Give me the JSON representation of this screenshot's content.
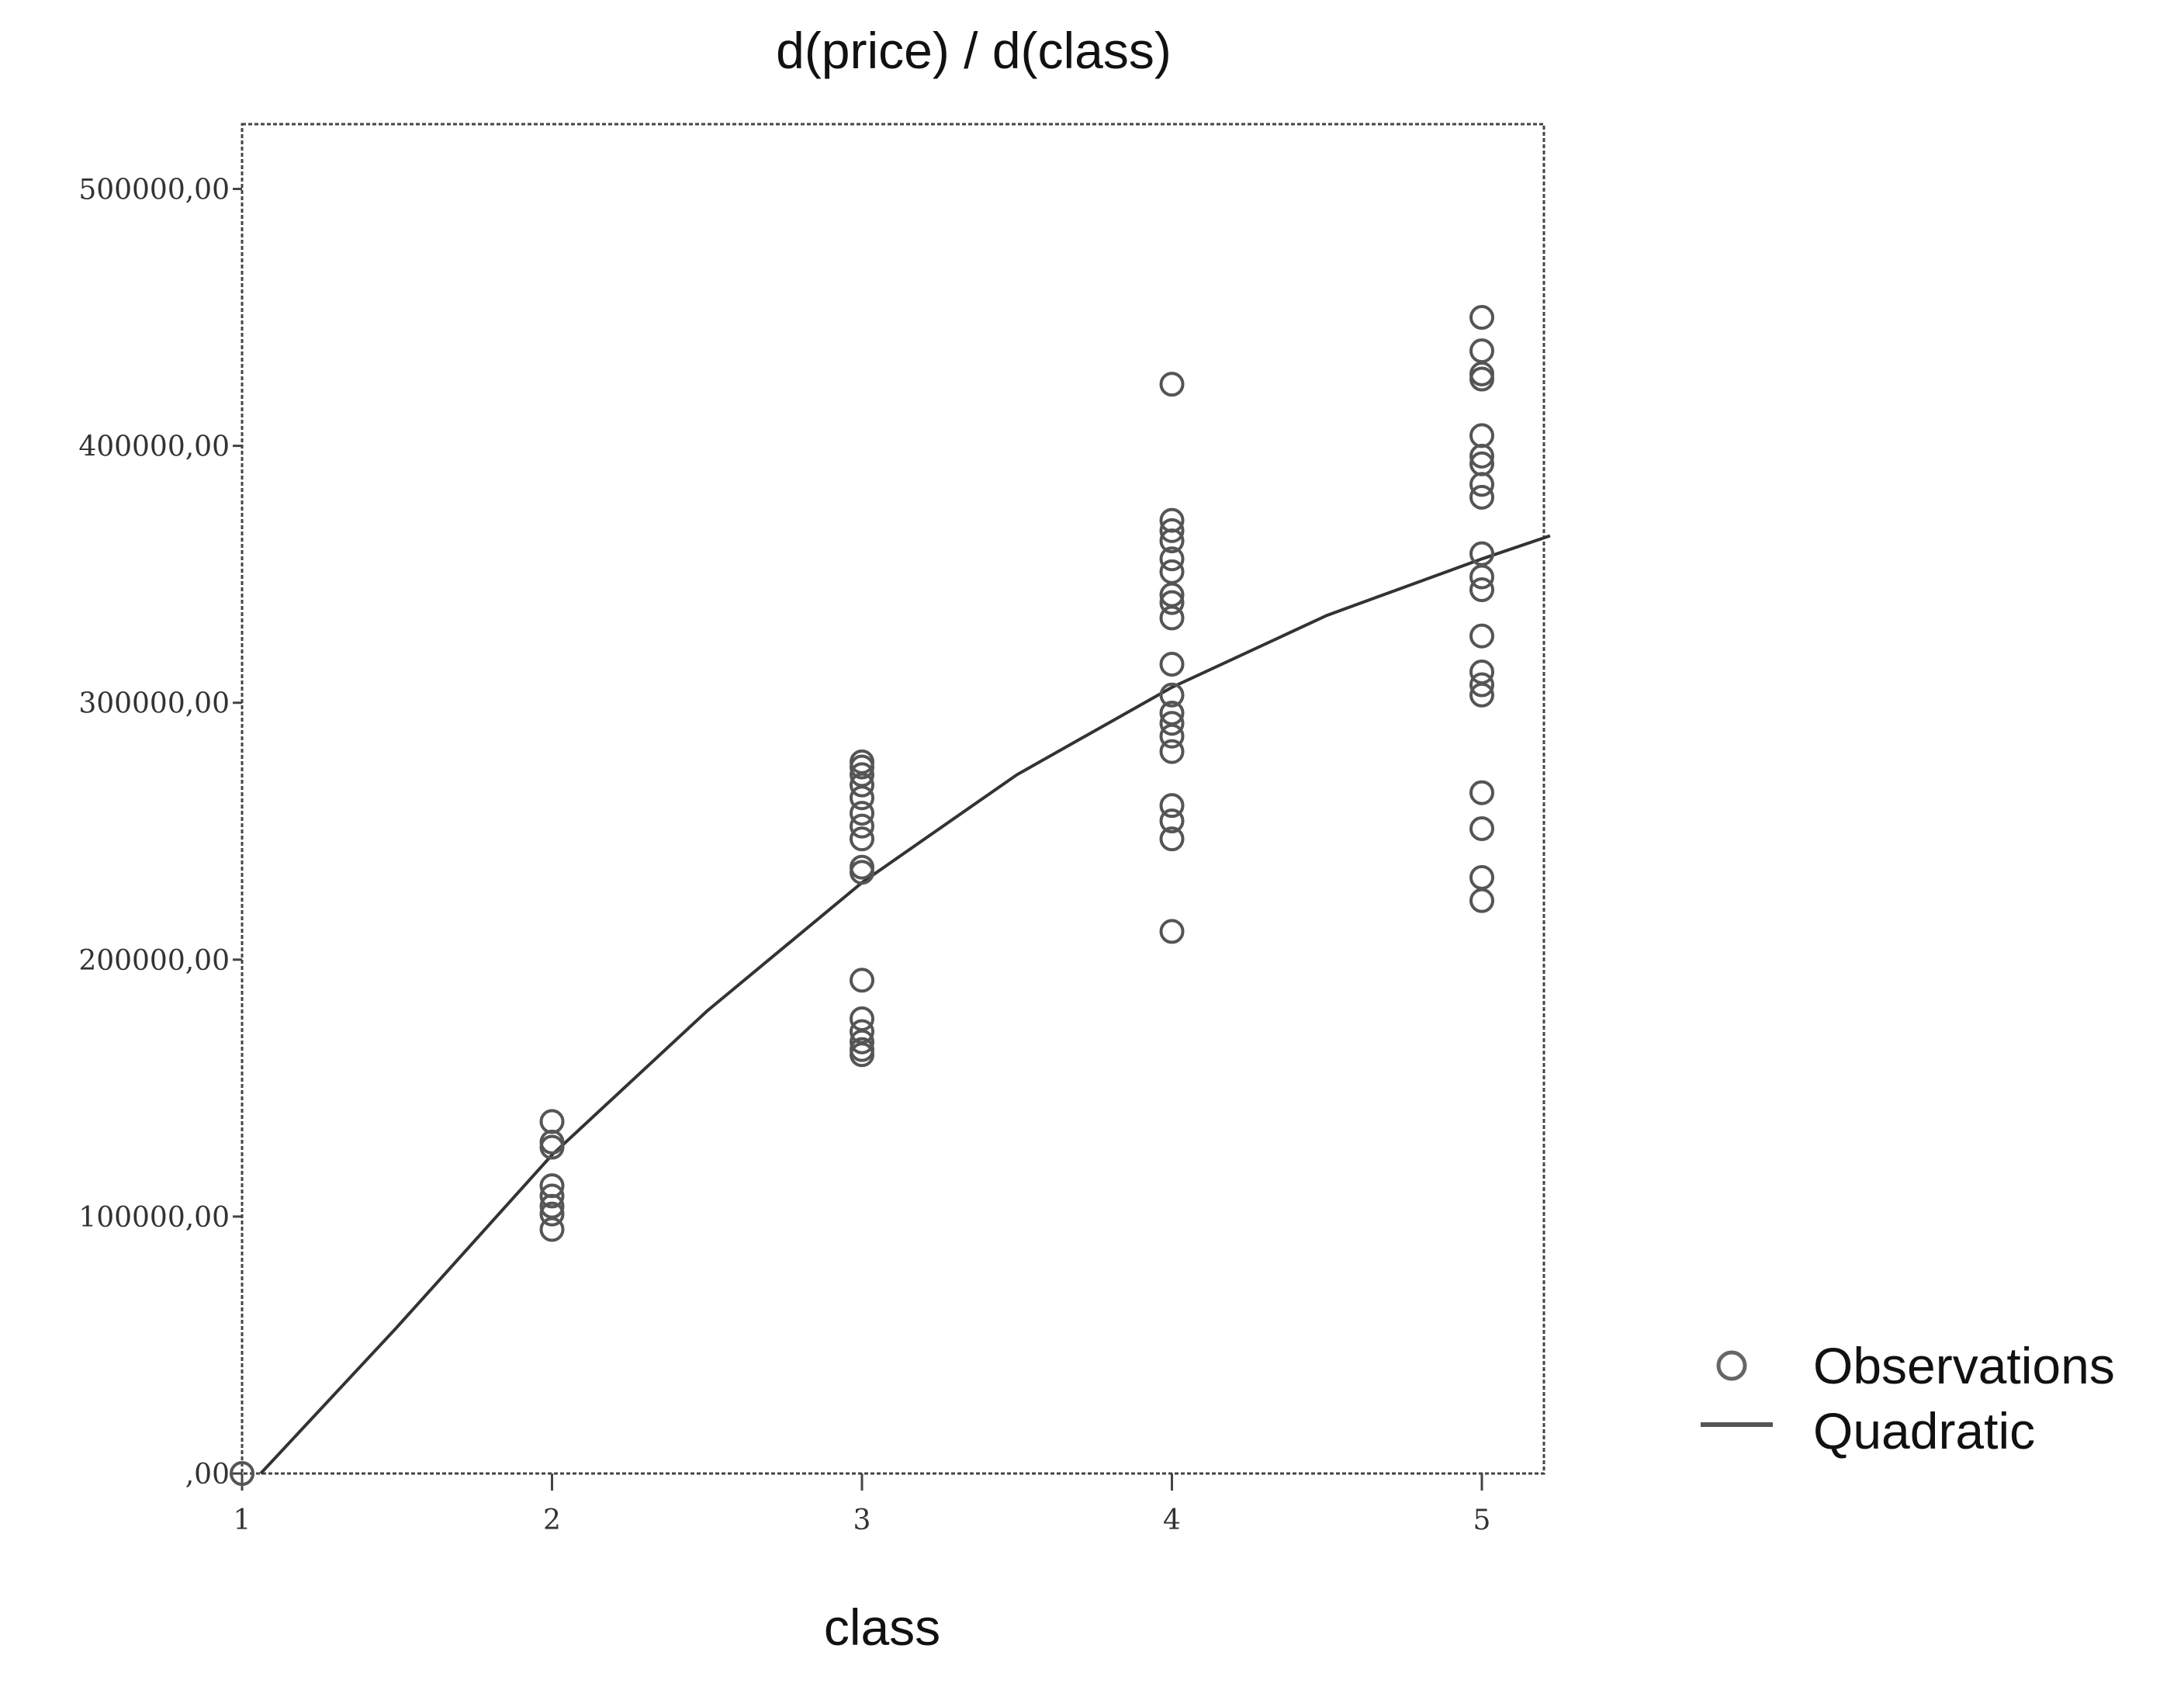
{
  "chart_data": {
    "type": "scatter",
    "title": "d(price) / d(class)",
    "xlabel": "class",
    "ylabel": "",
    "xlim": [
      1,
      5.2
    ],
    "ylim": [
      0,
      525000
    ],
    "x_ticks": [
      1,
      2,
      3,
      4,
      5
    ],
    "x_tick_labels": [
      "1",
      "2",
      "3",
      "4",
      "5"
    ],
    "y_ticks": [
      0,
      100000,
      200000,
      300000,
      400000,
      500000
    ],
    "y_tick_labels": [
      ",00",
      "100000,00",
      "200000,00",
      "300000,00",
      "400000,00",
      "500000,00"
    ],
    "grid": false,
    "legend_position": "right",
    "series": [
      {
        "name": "Observations",
        "kind": "scatter",
        "marker": "open-circle",
        "color": "#555555",
        "points": [
          [
            1,
            0
          ],
          [
            2,
            137000
          ],
          [
            2,
            129000
          ],
          [
            2,
            127000
          ],
          [
            2,
            112000
          ],
          [
            2,
            108000
          ],
          [
            2,
            104000
          ],
          [
            2,
            101000
          ],
          [
            2,
            95000
          ],
          [
            3,
            277000
          ],
          [
            3,
            275000
          ],
          [
            3,
            272000
          ],
          [
            3,
            268000
          ],
          [
            3,
            263000
          ],
          [
            3,
            257000
          ],
          [
            3,
            252000
          ],
          [
            3,
            247000
          ],
          [
            3,
            236000
          ],
          [
            3,
            234000
          ],
          [
            3,
            192000
          ],
          [
            3,
            177000
          ],
          [
            3,
            172000
          ],
          [
            3,
            168000
          ],
          [
            3,
            165000
          ],
          [
            3,
            163000
          ],
          [
            4,
            424000
          ],
          [
            4,
            371000
          ],
          [
            4,
            367000
          ],
          [
            4,
            363000
          ],
          [
            4,
            356000
          ],
          [
            4,
            351000
          ],
          [
            4,
            342000
          ],
          [
            4,
            339000
          ],
          [
            4,
            333000
          ],
          [
            4,
            315000
          ],
          [
            4,
            303000
          ],
          [
            4,
            296000
          ],
          [
            4,
            292000
          ],
          [
            4,
            287000
          ],
          [
            4,
            281000
          ],
          [
            4,
            260000
          ],
          [
            4,
            254000
          ],
          [
            4,
            247000
          ],
          [
            4,
            211000
          ],
          [
            5,
            450000
          ],
          [
            5,
            437000
          ],
          [
            5,
            428000
          ],
          [
            5,
            426000
          ],
          [
            5,
            404000
          ],
          [
            5,
            396000
          ],
          [
            5,
            393000
          ],
          [
            5,
            385000
          ],
          [
            5,
            380000
          ],
          [
            5,
            358000
          ],
          [
            5,
            349000
          ],
          [
            5,
            344000
          ],
          [
            5,
            326000
          ],
          [
            5,
            312000
          ],
          [
            5,
            307000
          ],
          [
            5,
            303000
          ],
          [
            5,
            265000
          ],
          [
            5,
            251000
          ],
          [
            5,
            232000
          ],
          [
            5,
            223000
          ]
        ]
      },
      {
        "name": "Quadratic",
        "kind": "line",
        "color": "#333333",
        "curve": [
          [
            1.06,
            0
          ],
          [
            1.5,
            57000
          ],
          [
            2,
            124000
          ],
          [
            2.5,
            180000
          ],
          [
            3,
            230000
          ],
          [
            3.5,
            272000
          ],
          [
            4,
            306000
          ],
          [
            4.5,
            334000
          ],
          [
            5,
            356000
          ],
          [
            5.22,
            365000
          ]
        ]
      }
    ]
  }
}
